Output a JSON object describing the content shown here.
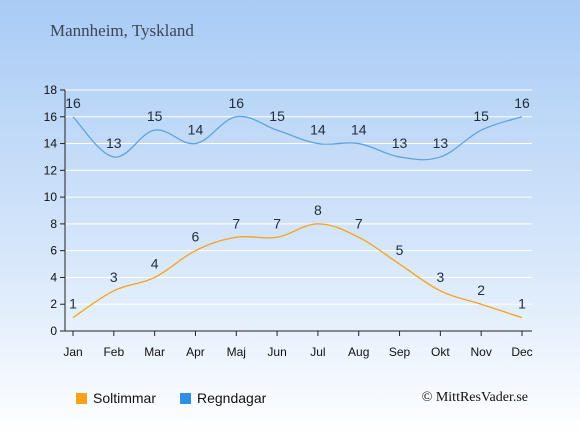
{
  "title": "Mannheim, Tyskland",
  "copyright": "© MittResVader.se",
  "colors": {
    "soltimmar": "#f7a21b",
    "regndagar": "#5fa3dc"
  },
  "chart_data": {
    "type": "line",
    "categories": [
      "Jan",
      "Feb",
      "Mar",
      "Apr",
      "Maj",
      "Jun",
      "Jul",
      "Aug",
      "Sep",
      "Okt",
      "Nov",
      "Dec"
    ],
    "series": [
      {
        "name": "Soltimmar",
        "values": [
          1,
          3,
          4,
          6,
          7,
          7,
          8,
          7,
          5,
          3,
          2,
          1
        ]
      },
      {
        "name": "Regndagar",
        "values": [
          16,
          13,
          15,
          14,
          16,
          15,
          14,
          14,
          13,
          13,
          15,
          16
        ]
      }
    ],
    "yticks": [
      0,
      2,
      4,
      6,
      8,
      10,
      12,
      14,
      16,
      18
    ],
    "ylim": [
      0,
      18
    ],
    "grid": true,
    "legend_position": "bottom-left"
  }
}
